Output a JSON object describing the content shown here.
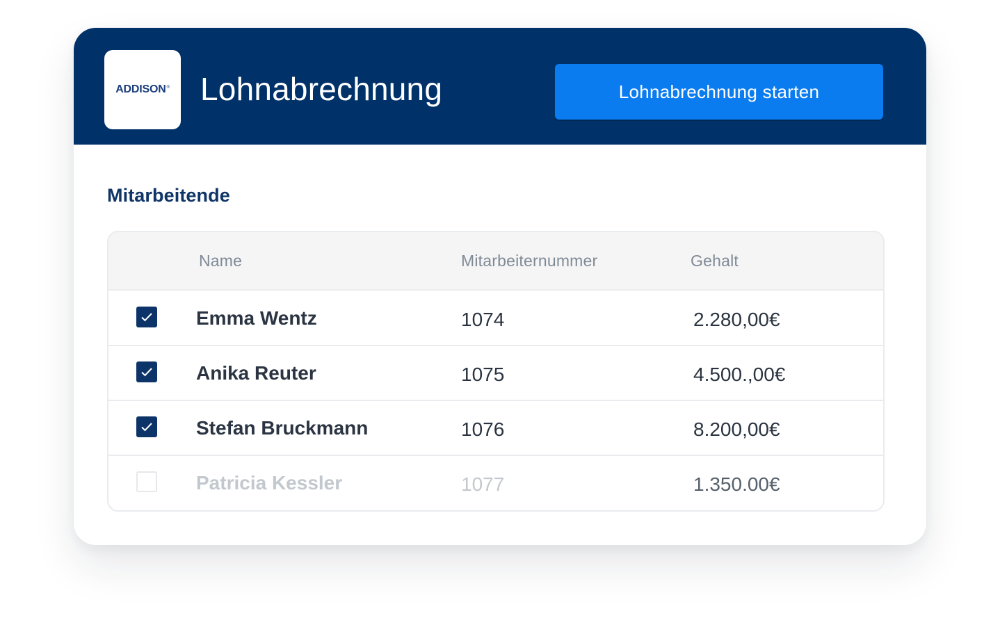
{
  "header": {
    "logo_text": "ADDISON",
    "logo_mark": "®",
    "title": "Lohnabrechnung",
    "start_button_label": "Lohnabrechnung starten"
  },
  "section_title": "Mitarbeitende",
  "table": {
    "columns": [
      "Name",
      "Mitarbeiternummer",
      "Gehalt"
    ],
    "rows": [
      {
        "selected": true,
        "name": "Emma Wentz",
        "number": "1074",
        "salary": "2.280,00€"
      },
      {
        "selected": true,
        "name": "Anika Reuter",
        "number": "1075",
        "salary": "4.500.,00€"
      },
      {
        "selected": true,
        "name": "Stefan Bruckmann",
        "number": "1076",
        "salary": "8.200,00€"
      },
      {
        "selected": false,
        "name": "Patricia Kessler",
        "number": "1077",
        "salary": "1.350.00€"
      }
    ]
  },
  "colors": {
    "header_bg": "#003168",
    "button_bg": "#0a7cf0",
    "checkbox_checked": "#0d3468",
    "section_title": "#0f3466"
  },
  "icons": {
    "checkbox_check": "check-icon"
  }
}
